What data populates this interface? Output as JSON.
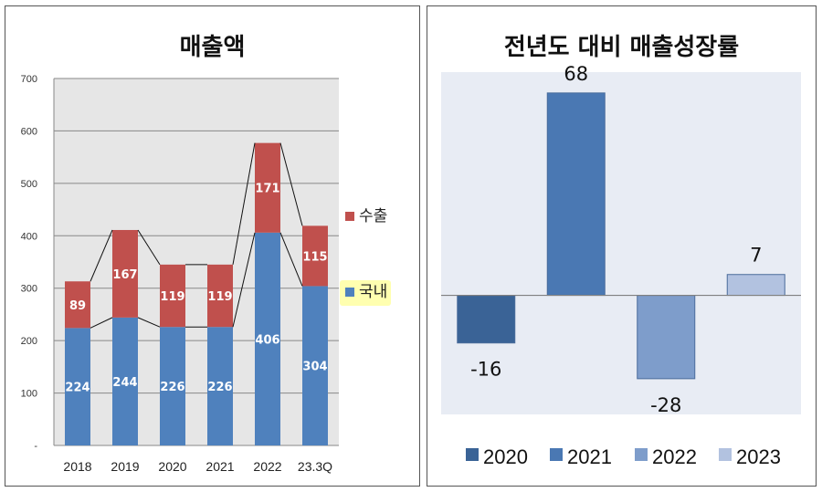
{
  "chart_data": [
    {
      "type": "bar",
      "stacked": true,
      "title": "매출액",
      "categories": [
        "2018",
        "2019",
        "2020",
        "2021",
        "2022",
        "23.3Q"
      ],
      "series": [
        {
          "name": "국내",
          "values": [
            224,
            244,
            226,
            226,
            406,
            304
          ],
          "color": "#4f81bd"
        },
        {
          "name": "수출",
          "values": [
            89,
            167,
            119,
            119,
            171,
            115
          ],
          "color": "#c0504d"
        }
      ],
      "ylim": [
        0,
        700
      ],
      "yticks": [
        "-",
        "100",
        "200",
        "300",
        "400",
        "500",
        "600",
        "700"
      ],
      "grid": true,
      "series_lines": true,
      "plot_background": "#e6e6e6",
      "legend": "right",
      "xlabel": "",
      "ylabel": ""
    },
    {
      "type": "bar",
      "title": "전년도 대비 매출성장률",
      "categories": [
        "2020",
        "2021",
        "2022",
        "2023"
      ],
      "values": [
        -16,
        68,
        -28,
        7
      ],
      "value_labels": [
        "-16",
        "68",
        "-28",
        "7"
      ],
      "colors": [
        "#3a6396",
        "#4a78b3",
        "#7e9dcb",
        "#b2c2e0"
      ],
      "ylim": [
        -40,
        75
      ],
      "plot_background": "#e8ecf4",
      "legend": "bottom",
      "grid": false,
      "xlabel": "",
      "ylabel": ""
    }
  ]
}
